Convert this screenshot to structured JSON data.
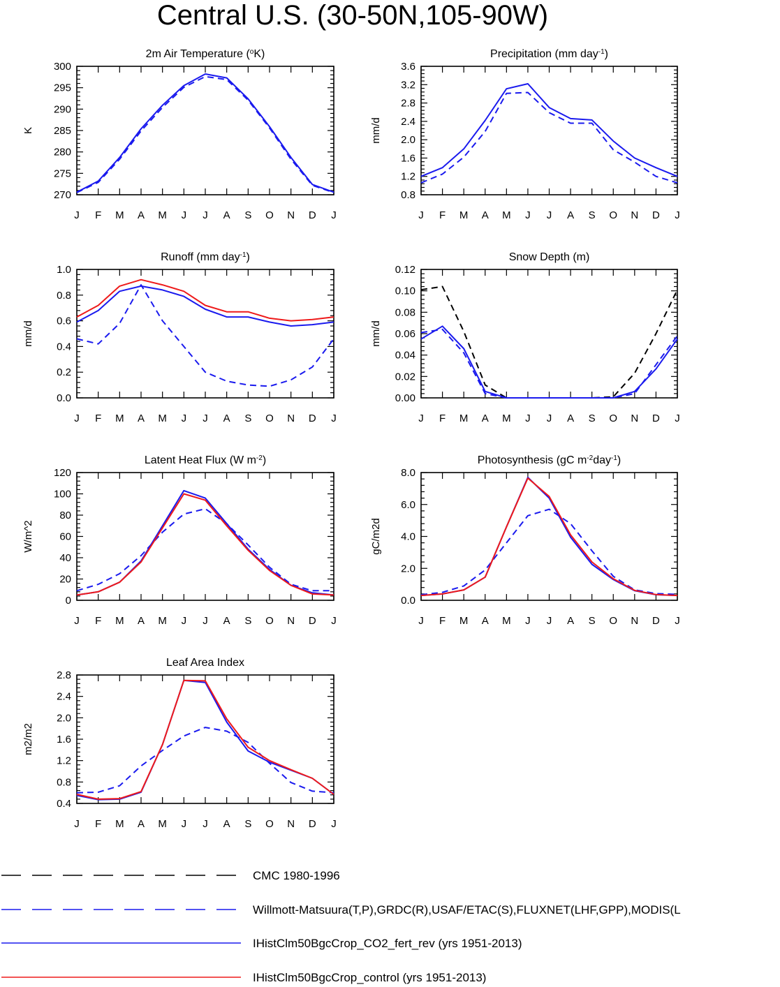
{
  "title": "Central U.S. (30-50N,105-90W)",
  "colors": {
    "obs_cmc": "#000000",
    "obs": "#1a1aee",
    "co2": "#1a1aee",
    "control": "#ee1a1a"
  },
  "chart_data": [
    {
      "type": "line",
      "title": "2m Air Temperature",
      "title_parts": [
        {
          "t": "2m Air Temperature ("
        },
        {
          "t": "o",
          "sup": true
        },
        {
          "t": "K)"
        }
      ],
      "ylabel": "K",
      "ylim": [
        270,
        300
      ],
      "yticks": [
        270,
        275,
        280,
        285,
        290,
        295,
        300
      ],
      "ytick_labels": [
        "270",
        "275",
        "280",
        "285",
        "290",
        "295",
        "300"
      ],
      "x": [
        "J",
        "F",
        "M",
        "A",
        "M",
        "J",
        "J",
        "A",
        "S",
        "O",
        "N",
        "D",
        "J"
      ],
      "series": [
        {
          "key": "obs",
          "dashed": true,
          "color": "#1a1aee",
          "values": [
            270.5,
            272.9,
            278.3,
            284.9,
            290.4,
            295.1,
            297.6,
            296.9,
            292.1,
            285.6,
            278.3,
            272.2,
            270.5
          ]
        },
        {
          "key": "co2",
          "dashed": false,
          "color": "#1a1aee",
          "values": [
            270.6,
            273.2,
            278.7,
            285.4,
            290.9,
            295.5,
            298.2,
            297.3,
            292.4,
            285.9,
            278.7,
            272.4,
            270.6
          ]
        }
      ]
    },
    {
      "type": "line",
      "title": "Precipitation",
      "title_parts": [
        {
          "t": "Precipitation (mm day"
        },
        {
          "t": "-1",
          "sup": true
        },
        {
          "t": ")"
        }
      ],
      "ylabel": "mm/d",
      "ylim": [
        0.8,
        3.6
      ],
      "yticks": [
        0.8,
        1.2,
        1.6,
        2.0,
        2.4,
        2.8,
        3.2,
        3.6
      ],
      "ytick_labels": [
        "0.8",
        "1.2",
        "1.6",
        "2.0",
        "2.4",
        "2.8",
        "3.2",
        "3.6"
      ],
      "x": [
        "J",
        "F",
        "M",
        "A",
        "M",
        "J",
        "J",
        "A",
        "S",
        "O",
        "N",
        "D",
        "J"
      ],
      "series": [
        {
          "key": "obs",
          "dashed": true,
          "color": "#1a1aee",
          "values": [
            1.06,
            1.25,
            1.62,
            2.18,
            3.01,
            3.03,
            2.59,
            2.36,
            2.36,
            1.78,
            1.51,
            1.2,
            1.06
          ]
        },
        {
          "key": "co2",
          "dashed": false,
          "color": "#1a1aee",
          "values": [
            1.2,
            1.39,
            1.8,
            2.42,
            3.11,
            3.22,
            2.7,
            2.46,
            2.43,
            1.97,
            1.6,
            1.39,
            1.2
          ]
        }
      ]
    },
    {
      "type": "line",
      "title": "Runoff",
      "title_parts": [
        {
          "t": "Runoff (mm day"
        },
        {
          "t": "-1",
          "sup": true
        },
        {
          "t": ")"
        }
      ],
      "ylabel": "mm/d",
      "ylim": [
        0.0,
        1.0
      ],
      "yticks": [
        0.0,
        0.2,
        0.4,
        0.6,
        0.8,
        1.0
      ],
      "ytick_labels": [
        "0.0",
        "0.2",
        "0.4",
        "0.6",
        "0.8",
        "1.0"
      ],
      "x": [
        "J",
        "F",
        "M",
        "A",
        "M",
        "J",
        "J",
        "A",
        "S",
        "O",
        "N",
        "D",
        "J"
      ],
      "series": [
        {
          "key": "obs",
          "dashed": true,
          "color": "#1a1aee",
          "values": [
            0.46,
            0.42,
            0.58,
            0.88,
            0.6,
            0.4,
            0.2,
            0.13,
            0.1,
            0.09,
            0.14,
            0.24,
            0.46
          ]
        },
        {
          "key": "co2",
          "dashed": false,
          "color": "#1a1aee",
          "values": [
            0.59,
            0.68,
            0.83,
            0.87,
            0.84,
            0.79,
            0.69,
            0.63,
            0.63,
            0.59,
            0.56,
            0.57,
            0.59
          ]
        },
        {
          "key": "control",
          "dashed": false,
          "color": "#ee1a1a",
          "values": [
            0.63,
            0.72,
            0.87,
            0.92,
            0.88,
            0.83,
            0.72,
            0.67,
            0.67,
            0.62,
            0.6,
            0.61,
            0.63
          ]
        }
      ]
    },
    {
      "type": "line",
      "title": "Snow Depth (m)",
      "title_parts": [
        {
          "t": "Snow Depth (m)"
        }
      ],
      "ylabel": "mm/d",
      "ylim": [
        0.0,
        0.12
      ],
      "yticks": [
        0.0,
        0.02,
        0.04,
        0.06,
        0.08,
        0.1,
        0.12
      ],
      "ytick_labels": [
        "0.00",
        "0.02",
        "0.04",
        "0.06",
        "0.08",
        "0.10",
        "0.12"
      ],
      "x": [
        "J",
        "F",
        "M",
        "A",
        "M",
        "J",
        "J",
        "A",
        "S",
        "O",
        "N",
        "D",
        "J"
      ],
      "series": [
        {
          "key": "obs_cmc",
          "dashed": true,
          "color": "#000000",
          "values": [
            0.101,
            0.104,
            0.062,
            0.012,
            0.0,
            0.0,
            0.0,
            0.0,
            0.0,
            0.001,
            0.023,
            0.06,
            0.101
          ]
        },
        {
          "key": "obs",
          "dashed": true,
          "color": "#1a1aee",
          "values": [
            0.061,
            0.064,
            0.042,
            0.004,
            0.0,
            0.0,
            0.0,
            0.0,
            0.0,
            0.0,
            0.004,
            0.031,
            0.058
          ]
        },
        {
          "key": "co2",
          "dashed": false,
          "color": "#1a1aee",
          "values": [
            0.055,
            0.067,
            0.046,
            0.006,
            0.0,
            0.0,
            0.0,
            0.0,
            0.0,
            0.0,
            0.006,
            0.027,
            0.055
          ]
        }
      ]
    },
    {
      "type": "line",
      "title": "Latent Heat Flux",
      "title_parts": [
        {
          "t": "Latent Heat Flux (W m"
        },
        {
          "t": "-2",
          "sup": true
        },
        {
          "t": ")"
        }
      ],
      "ylabel": "W/m^2",
      "ylim": [
        0,
        120
      ],
      "yticks": [
        0,
        20,
        40,
        60,
        80,
        100,
        120
      ],
      "ytick_labels": [
        "0",
        "20",
        "40",
        "60",
        "80",
        "100",
        "120"
      ],
      "x": [
        "J",
        "F",
        "M",
        "A",
        "M",
        "J",
        "J",
        "A",
        "S",
        "O",
        "N",
        "D",
        "J"
      ],
      "series": [
        {
          "key": "obs",
          "dashed": true,
          "color": "#1a1aee",
          "values": [
            9,
            15,
            25,
            42,
            64,
            81,
            86,
            72,
            52,
            31,
            15,
            9,
            9
          ]
        },
        {
          "key": "co2",
          "dashed": false,
          "color": "#1a1aee",
          "values": [
            5,
            8,
            17,
            37,
            70,
            103,
            96,
            72,
            48,
            29,
            14,
            7,
            5
          ]
        },
        {
          "key": "control",
          "dashed": false,
          "color": "#ee1a1a",
          "values": [
            5,
            8,
            17,
            36,
            68,
            100,
            94,
            70,
            47,
            28,
            14,
            6,
            5
          ]
        }
      ]
    },
    {
      "type": "line",
      "title": "Photosynthesis",
      "title_parts": [
        {
          "t": "Photosynthesis (gC m"
        },
        {
          "t": "-2",
          "sup": true
        },
        {
          "t": "day"
        },
        {
          "t": "-1",
          "sup": true
        },
        {
          "t": ")"
        }
      ],
      "ylabel": "gC/m2d",
      "ylim": [
        0.0,
        8.0
      ],
      "yticks": [
        0.0,
        2.0,
        4.0,
        6.0,
        8.0
      ],
      "ytick_labels": [
        "0.0",
        "2.0",
        "4.0",
        "6.0",
        "8.0"
      ],
      "x": [
        "J",
        "F",
        "M",
        "A",
        "M",
        "J",
        "J",
        "A",
        "S",
        "O",
        "N",
        "D",
        "J"
      ],
      "series": [
        {
          "key": "obs",
          "dashed": true,
          "color": "#1a1aee",
          "values": [
            0.35,
            0.5,
            0.9,
            1.9,
            3.6,
            5.3,
            5.7,
            4.8,
            3.1,
            1.5,
            0.65,
            0.42,
            0.37
          ]
        },
        {
          "key": "co2",
          "dashed": false,
          "color": "#1a1aee",
          "values": [
            0.3,
            0.4,
            0.65,
            1.45,
            4.6,
            7.7,
            6.4,
            3.95,
            2.25,
            1.3,
            0.6,
            0.35,
            0.3
          ]
        },
        {
          "key": "control",
          "dashed": false,
          "color": "#ee1a1a",
          "values": [
            0.3,
            0.4,
            0.65,
            1.45,
            4.6,
            7.65,
            6.5,
            4.1,
            2.4,
            1.35,
            0.62,
            0.36,
            0.3
          ]
        }
      ]
    },
    {
      "type": "line",
      "title": "Leaf Area Index",
      "title_parts": [
        {
          "t": "Leaf Area Index"
        }
      ],
      "ylabel": "m2/m2",
      "ylim": [
        0.4,
        2.8
      ],
      "yticks": [
        0.4,
        0.8,
        1.2,
        1.6,
        2.0,
        2.4,
        2.8
      ],
      "ytick_labels": [
        "0.4",
        "0.8",
        "1.2",
        "1.6",
        "2.0",
        "2.4",
        "2.8"
      ],
      "x": [
        "J",
        "F",
        "M",
        "A",
        "M",
        "J",
        "J",
        "A",
        "S",
        "O",
        "N",
        "D",
        "J"
      ],
      "series": [
        {
          "key": "obs",
          "dashed": true,
          "color": "#1a1aee",
          "values": [
            0.6,
            0.61,
            0.73,
            1.1,
            1.39,
            1.66,
            1.82,
            1.75,
            1.54,
            1.15,
            0.79,
            0.63,
            0.6
          ]
        },
        {
          "key": "co2",
          "dashed": false,
          "color": "#1a1aee",
          "values": [
            0.55,
            0.47,
            0.48,
            0.61,
            1.5,
            2.7,
            2.66,
            1.92,
            1.38,
            1.17,
            1.02,
            0.87,
            0.57
          ]
        },
        {
          "key": "control",
          "dashed": false,
          "color": "#ee1a1a",
          "values": [
            0.57,
            0.48,
            0.49,
            0.62,
            1.5,
            2.7,
            2.69,
            1.98,
            1.45,
            1.2,
            1.03,
            0.87,
            0.57
          ]
        }
      ]
    }
  ],
  "legend": [
    {
      "key": "obs_cmc",
      "label": "CMC 1980-1996",
      "dashed": true,
      "color": "#000000"
    },
    {
      "key": "obs",
      "label": "Willmott-Matsuura(T,P),GRDC(R),USAF/ETAC(S),FLUXNET(LHF,GPP),MODIS(L",
      "dashed": true,
      "color": "#1a1aee"
    },
    {
      "key": "co2",
      "label": "IHistClm50BgcCrop_CO2_fert_rev (yrs 1951-2013)",
      "dashed": false,
      "color": "#1a1aee"
    },
    {
      "key": "control",
      "label": "IHistClm50BgcCrop_control (yrs 1951-2013)",
      "dashed": false,
      "color": "#ee1a1a"
    }
  ]
}
